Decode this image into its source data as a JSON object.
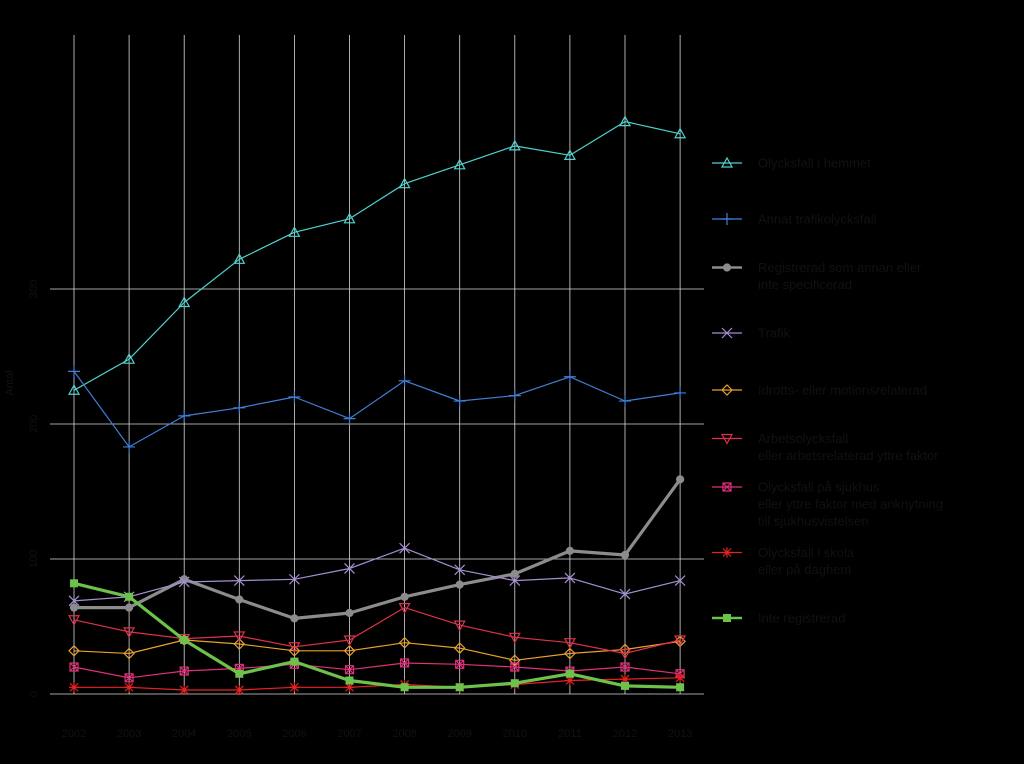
{
  "chart_data": {
    "type": "line",
    "title": "",
    "xlabel": "",
    "ylabel": "Antal",
    "x": [
      "2002",
      "2003",
      "2004",
      "2005",
      "2006",
      "2007",
      "2008",
      "2009",
      "2010",
      "2011",
      "2012",
      "2013"
    ],
    "ylim": [
      0,
      400
    ],
    "yticks": [
      0,
      100,
      200,
      300
    ],
    "ytick_labels": [
      "0",
      "100",
      "200",
      "300"
    ],
    "grid": true,
    "legend_position": "right",
    "background": "#000000",
    "grid_color": "#d8d8d8",
    "series": [
      {
        "name": "Olycksfall i hemmet",
        "color": "#4fd3cf",
        "marker": "triangle",
        "width": 1.2,
        "values": [
          225,
          248,
          290,
          322,
          342,
          352,
          378,
          392,
          406,
          399,
          424,
          415
        ]
      },
      {
        "name": "Annat trafikolycksfall",
        "color": "#3f7fd6",
        "marker": "plus",
        "width": 1.2,
        "values": [
          239,
          183,
          206,
          212,
          220,
          204,
          232,
          217,
          221,
          235,
          217,
          223
        ]
      },
      {
        "name": "Registrerad som annan eller inte specificerad",
        "color": "#8c8c8c",
        "marker": "circle",
        "width": 3.2,
        "values": [
          64,
          64,
          85,
          70,
          56,
          60,
          72,
          81,
          89,
          106,
          103,
          159
        ]
      },
      {
        "name": "Trafik",
        "color": "#a58fd0",
        "marker": "x",
        "width": 1.2,
        "values": [
          69,
          72,
          83,
          84,
          85,
          93,
          108,
          92,
          84,
          86,
          74,
          84
        ]
      },
      {
        "name": "Idrotts- eller motionsrelaterad",
        "color": "#e8a030",
        "marker": "diamond",
        "width": 1.2,
        "values": [
          32,
          30,
          40,
          37,
          32,
          32,
          38,
          34,
          25,
          30,
          33,
          39
        ]
      },
      {
        "name": "Arbetsolycksfall eller arbetsrelaterad yttre faktor",
        "color": "#e0304a",
        "marker": "triangle-down",
        "width": 1.2,
        "values": [
          55,
          46,
          41,
          43,
          35,
          40,
          64,
          51,
          42,
          38,
          30,
          40
        ]
      },
      {
        "name": "Olycksfall på sjukhus eller yttre faktor med anknytning till sjukhusvistelsen",
        "color": "#e0307a",
        "marker": "square-x",
        "width": 1.2,
        "values": [
          20,
          12,
          17,
          19,
          22,
          18,
          23,
          22,
          20,
          17,
          20,
          15
        ]
      },
      {
        "name": "Olycksfall i skola eller på daghem",
        "color": "#e82222",
        "marker": "star",
        "width": 1.2,
        "values": [
          5,
          5,
          3,
          3,
          5,
          5,
          7,
          5,
          7,
          10,
          11,
          12
        ]
      },
      {
        "name": "Inte registrerad",
        "color": "#6cc24a",
        "marker": "square",
        "width": 3.2,
        "values": [
          82,
          72,
          40,
          15,
          24,
          10,
          5,
          5,
          8,
          15,
          6,
          5
        ]
      }
    ],
    "legend": [
      {
        "lines": [
          "Olycksfall i hemmet"
        ]
      },
      {
        "lines": [
          "Annat trafikolycksfall"
        ]
      },
      {
        "lines": [
          "Registrerad som annan eller",
          "inte specificerad"
        ]
      },
      {
        "lines": [
          "Trafik"
        ]
      },
      {
        "lines": [
          "Idrotts- eller motionsrelaterad"
        ]
      },
      {
        "lines": [
          "Arbetsolycksfall",
          "eller arbetsrelaterad yttre faktor"
        ]
      },
      {
        "lines": [
          "Olycksfall på sjukhus",
          "eller yttre faktor med anknytning",
          "till sjukhusvistelsen"
        ]
      },
      {
        "lines": [
          "Olycksfall i skola",
          "eller på daghem"
        ]
      },
      {
        "lines": [
          "Inte registrerad"
        ]
      }
    ]
  }
}
